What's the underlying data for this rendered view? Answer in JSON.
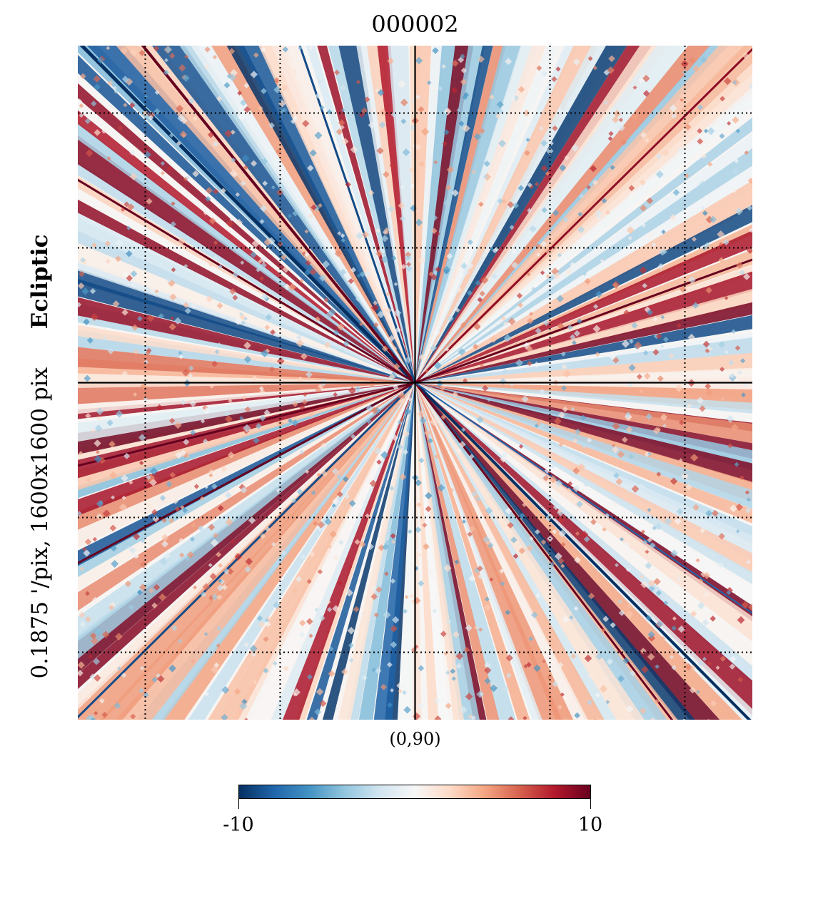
{
  "chart_data": {
    "type": "heatmap",
    "title": "000002",
    "projection": "gnomonic",
    "coordinate_system": "Ecliptic",
    "resolution_label": "0.1875 '/pix,",
    "size_label": "1600x1600 pix",
    "center_label": "(0,90)",
    "colormap": "RdBu_r",
    "colormap_stops": [
      "#053061",
      "#2166ac",
      "#4393c3",
      "#92c5de",
      "#d1e5f0",
      "#f7f7f7",
      "#fddbc7",
      "#f4a582",
      "#d6604d",
      "#b2182b",
      "#67001f"
    ],
    "vmin": -10,
    "vmax": 10,
    "colorbar_ticks": [
      "-10",
      "10"
    ],
    "graticule": "dotted",
    "pattern": "radial streaks converging at the center"
  }
}
